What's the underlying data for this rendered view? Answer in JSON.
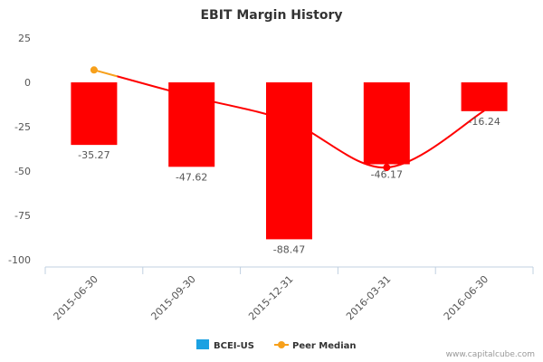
{
  "chart_data": {
    "type": "bar",
    "title": "EBIT Margin History",
    "xlabel": "",
    "ylabel": "",
    "categories": [
      "2015-06-30",
      "2015-09-30",
      "2015-12-31",
      "2016-03-31",
      "2016-06-30"
    ],
    "ylim": [
      -100,
      25
    ],
    "yticks": [
      25,
      0,
      -25,
      -50,
      -75,
      -100
    ],
    "grid": false,
    "legend_position": "bottom",
    "series": [
      {
        "name": "BCEI-US",
        "type": "bar",
        "values": [
          -35.27,
          -47.62,
          -88.47,
          -46.17,
          -16.24
        ],
        "labels": [
          "-35.27",
          "-47.62",
          "-88.47",
          "-46.17",
          "-16.24"
        ],
        "color": "#ff0000",
        "legend_color": "#1ba1e2"
      },
      {
        "name": "Peer Median",
        "type": "line",
        "values": [
          7,
          -8,
          -22,
          -48,
          -16
        ],
        "color_before": "#f7a01b",
        "color_after": "#ff0000"
      }
    ]
  },
  "credit": "www.capitalcube.com"
}
